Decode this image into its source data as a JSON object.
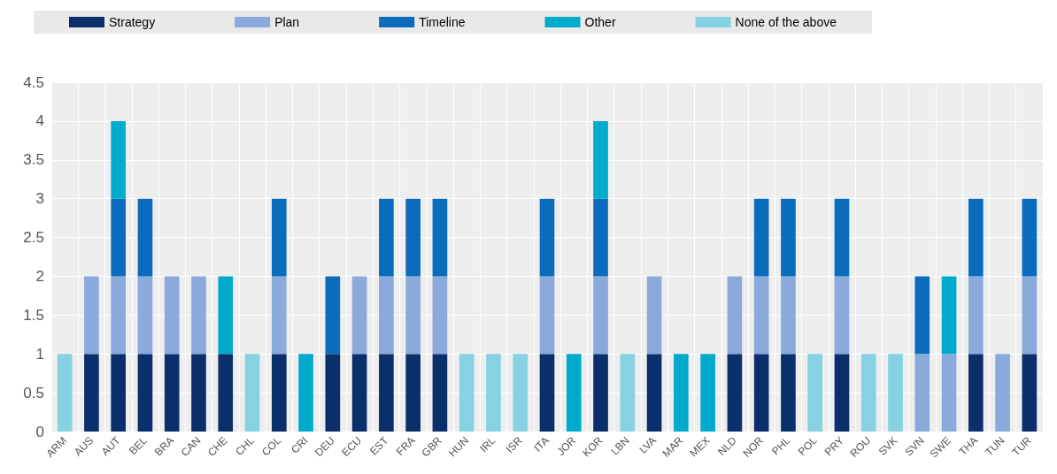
{
  "chart_data": {
    "type": "bar",
    "stacked": true,
    "legend": "top",
    "grid": true,
    "categories": [
      "ARM",
      "AUS",
      "AUT",
      "BEL",
      "BRA",
      "CAN",
      "CHE",
      "CHL",
      "COL",
      "CRI",
      "DEU",
      "ECU",
      "EST",
      "FRA",
      "GBR",
      "HUN",
      "IRL",
      "ISR",
      "ITA",
      "JOR",
      "KOR",
      "LBN",
      "LVA",
      "MAR",
      "MEX",
      "NLD",
      "NOR",
      "PHL",
      "POL",
      "PRY",
      "ROU",
      "SVK",
      "SVN",
      "SWE",
      "THA",
      "TUN",
      "TUR"
    ],
    "ylim": [
      0,
      4.5
    ],
    "yticks": [
      0,
      0.5,
      1,
      1.5,
      2,
      2.5,
      3,
      3.5,
      4,
      4.5
    ],
    "series": [
      {
        "name": "Strategy",
        "color": "#0b2f6b",
        "values": [
          0,
          1,
          1,
          1,
          1,
          1,
          1,
          0,
          1,
          0,
          1,
          1,
          1,
          1,
          1,
          0,
          0,
          0,
          1,
          0,
          1,
          0,
          1,
          0,
          0,
          1,
          1,
          1,
          0,
          1,
          0,
          0,
          0,
          0,
          1,
          0,
          1
        ]
      },
      {
        "name": "Plan",
        "color": "#8aaadc",
        "values": [
          0,
          1,
          1,
          1,
          1,
          1,
          0,
          0,
          1,
          0,
          0,
          1,
          1,
          1,
          1,
          0,
          0,
          0,
          1,
          0,
          1,
          0,
          1,
          0,
          0,
          1,
          1,
          1,
          0,
          1,
          0,
          0,
          1,
          1,
          1,
          1,
          1
        ]
      },
      {
        "name": "Timeline",
        "color": "#0b6cbd",
        "values": [
          0,
          0,
          1,
          1,
          0,
          0,
          0,
          0,
          1,
          0,
          1,
          0,
          1,
          1,
          1,
          0,
          0,
          0,
          1,
          0,
          1,
          0,
          0,
          0,
          0,
          0,
          1,
          1,
          0,
          1,
          0,
          0,
          1,
          0,
          1,
          0,
          1
        ]
      },
      {
        "name": "Other",
        "color": "#00aacc",
        "values": [
          0,
          0,
          1,
          0,
          0,
          0,
          1,
          0,
          0,
          1,
          0,
          0,
          0,
          0,
          0,
          0,
          0,
          0,
          0,
          1,
          1,
          0,
          0,
          1,
          1,
          0,
          0,
          0,
          0,
          0,
          0,
          0,
          0,
          1,
          0,
          0,
          0
        ]
      },
      {
        "name": "None of the above",
        "color": "#86d2e2",
        "values": [
          1,
          0,
          0,
          0,
          0,
          0,
          0,
          1,
          0,
          0,
          0,
          0,
          0,
          0,
          0,
          1,
          1,
          1,
          0,
          0,
          0,
          1,
          0,
          0,
          0,
          0,
          0,
          0,
          1,
          0,
          1,
          1,
          0,
          0,
          0,
          0,
          0
        ]
      }
    ]
  }
}
